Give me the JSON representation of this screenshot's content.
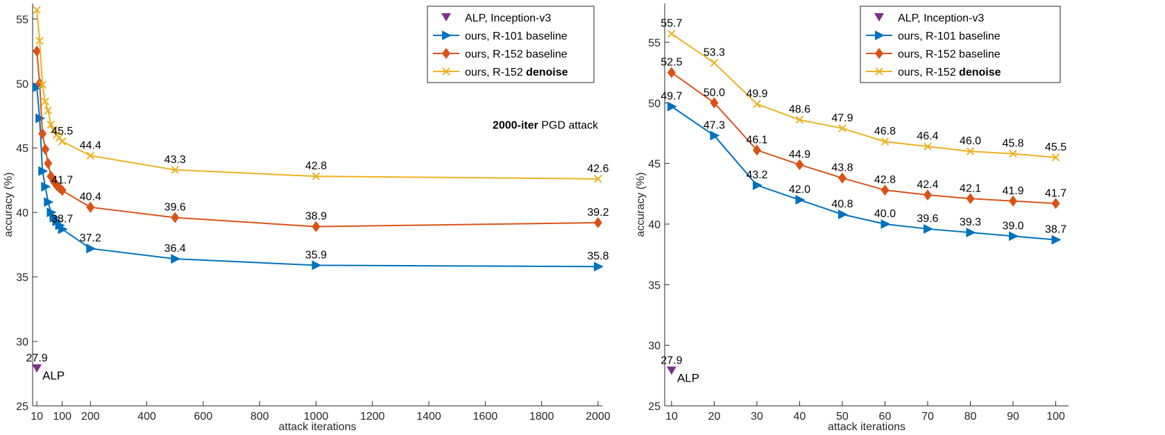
{
  "colors": {
    "alp": "#7E2F8E",
    "r101": "#0072BD",
    "r152": "#D95319",
    "denoise": "#EDB120",
    "axis": "#262626"
  },
  "chart_data": [
    {
      "type": "line",
      "xlabel": "attack iterations",
      "ylabel": "accuracy (%)",
      "xlim": [
        -5,
        2015
      ],
      "ylim": [
        25,
        56.2
      ],
      "xticks": [
        10,
        100,
        200,
        400,
        600,
        800,
        1000,
        1200,
        1400,
        1600,
        1800,
        2000
      ],
      "yticks": [
        25,
        30,
        35,
        40,
        45,
        50,
        55
      ],
      "grid": false,
      "legend_position": "top-right",
      "annotation": {
        "bold": "2000-iter",
        "rest": "PGD attack"
      },
      "x": [
        10,
        20,
        30,
        40,
        50,
        60,
        70,
        80,
        90,
        100,
        200,
        500,
        1000,
        2000
      ],
      "labeled_x": [
        100,
        200,
        500,
        1000,
        2000
      ],
      "series": [
        {
          "key": "r101",
          "name": "ours, R-101 baseline",
          "marker": "triangle-right",
          "values": [
            49.7,
            47.3,
            43.2,
            42.0,
            40.8,
            40.0,
            39.6,
            39.3,
            39.0,
            38.7,
            37.2,
            36.4,
            35.9,
            35.8
          ]
        },
        {
          "key": "r152",
          "name": "ours, R-152 baseline",
          "marker": "diamond",
          "values": [
            52.5,
            50.0,
            46.1,
            44.9,
            43.8,
            42.8,
            42.4,
            42.1,
            41.9,
            41.7,
            40.4,
            39.6,
            38.9,
            39.2
          ]
        },
        {
          "key": "denoise",
          "name": "ours, R-152",
          "name_bold": "denoise",
          "marker": "x",
          "values": [
            55.7,
            53.3,
            49.9,
            48.6,
            47.9,
            46.8,
            46.4,
            46.0,
            45.8,
            45.5,
            44.4,
            43.3,
            42.8,
            42.6
          ]
        }
      ],
      "alp": {
        "name": "ALP, Inception-v3",
        "x": 10,
        "value": 27.9,
        "label": "27.9",
        "tag": "ALP"
      }
    },
    {
      "type": "line",
      "xlabel": "attack iterations",
      "ylabel": "accuracy (%)",
      "xlim": [
        8.4,
        103
      ],
      "ylim": [
        25,
        58.2
      ],
      "xticks": [
        10,
        20,
        30,
        40,
        50,
        60,
        70,
        80,
        90,
        100
      ],
      "yticks": [
        25,
        30,
        35,
        40,
        45,
        50,
        55
      ],
      "grid": false,
      "legend_position": "top-right",
      "x": [
        10,
        20,
        30,
        40,
        50,
        60,
        70,
        80,
        90,
        100
      ],
      "labeled_x": [
        10,
        20,
        30,
        40,
        50,
        60,
        70,
        80,
        90,
        100
      ],
      "series": [
        {
          "key": "r101",
          "name": "ours, R-101 baseline",
          "marker": "triangle-right",
          "values": [
            49.7,
            47.3,
            43.2,
            42.0,
            40.8,
            40.0,
            39.6,
            39.3,
            39.0,
            38.7
          ]
        },
        {
          "key": "r152",
          "name": "ours, R-152 baseline",
          "marker": "diamond",
          "values": [
            52.5,
            50.0,
            46.1,
            44.9,
            43.8,
            42.8,
            42.4,
            42.1,
            41.9,
            41.7
          ]
        },
        {
          "key": "denoise",
          "name": "ours, R-152",
          "name_bold": "denoise",
          "marker": "x",
          "values": [
            55.7,
            53.3,
            49.9,
            48.6,
            47.9,
            46.8,
            46.4,
            46.0,
            45.8,
            45.5
          ]
        }
      ],
      "alp": {
        "name": "ALP, Inception-v3",
        "x": 10,
        "value": 27.9,
        "label": "27.9",
        "tag": "ALP"
      }
    }
  ]
}
